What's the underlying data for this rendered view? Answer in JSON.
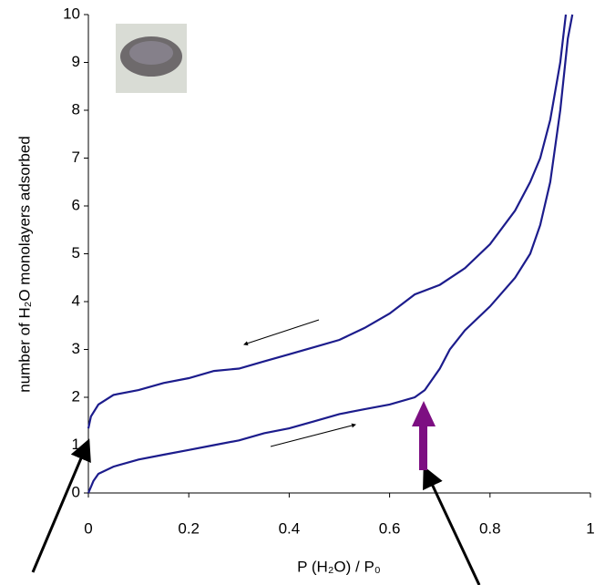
{
  "chart_data": {
    "type": "line",
    "x_label": "P (H₂O) / P₀",
    "y_label": "number of H₂O monolayers adsorbed",
    "xlim": [
      0,
      1
    ],
    "ylim": [
      0,
      10
    ],
    "xticks": [
      0,
      0.2,
      0.4,
      0.6,
      0.8,
      1
    ],
    "yticks": [
      0,
      1,
      2,
      3,
      4,
      5,
      6,
      7,
      8,
      9,
      10
    ],
    "series": [
      {
        "color": "#1c1c8c",
        "x": [
          0,
          0.01,
          0.02,
          0.05,
          0.1,
          0.15,
          0.2,
          0.25,
          0.3,
          0.35,
          0.4,
          0.45,
          0.5,
          0.55,
          0.6,
          0.65,
          0.67,
          0.7,
          0.72,
          0.75,
          0.8,
          0.85,
          0.88,
          0.9,
          0.92,
          0.94,
          0.955,
          0.964
        ],
        "values": [
          0,
          0.25,
          0.4,
          0.55,
          0.7,
          0.8,
          0.9,
          1.0,
          1.1,
          1.25,
          1.35,
          1.5,
          1.65,
          1.75,
          1.85,
          2.0,
          2.15,
          2.6,
          3.0,
          3.4,
          3.9,
          4.5,
          5.0,
          5.6,
          6.5,
          8.0,
          9.5,
          10
        ]
      },
      {
        "color": "#1c1c8c",
        "x": [
          0,
          0.005,
          0.02,
          0.05,
          0.1,
          0.15,
          0.2,
          0.25,
          0.3,
          0.35,
          0.4,
          0.45,
          0.5,
          0.55,
          0.6,
          0.65,
          0.7,
          0.75,
          0.8,
          0.85,
          0.88,
          0.9,
          0.92,
          0.94,
          0.951
        ],
        "values": [
          1.35,
          1.6,
          1.85,
          2.05,
          2.15,
          2.3,
          2.4,
          2.55,
          2.6,
          2.75,
          2.9,
          3.05,
          3.2,
          3.45,
          3.75,
          4.15,
          4.35,
          4.7,
          5.2,
          5.9,
          6.5,
          7.0,
          7.8,
          9.0,
          10
        ]
      }
    ]
  }
}
